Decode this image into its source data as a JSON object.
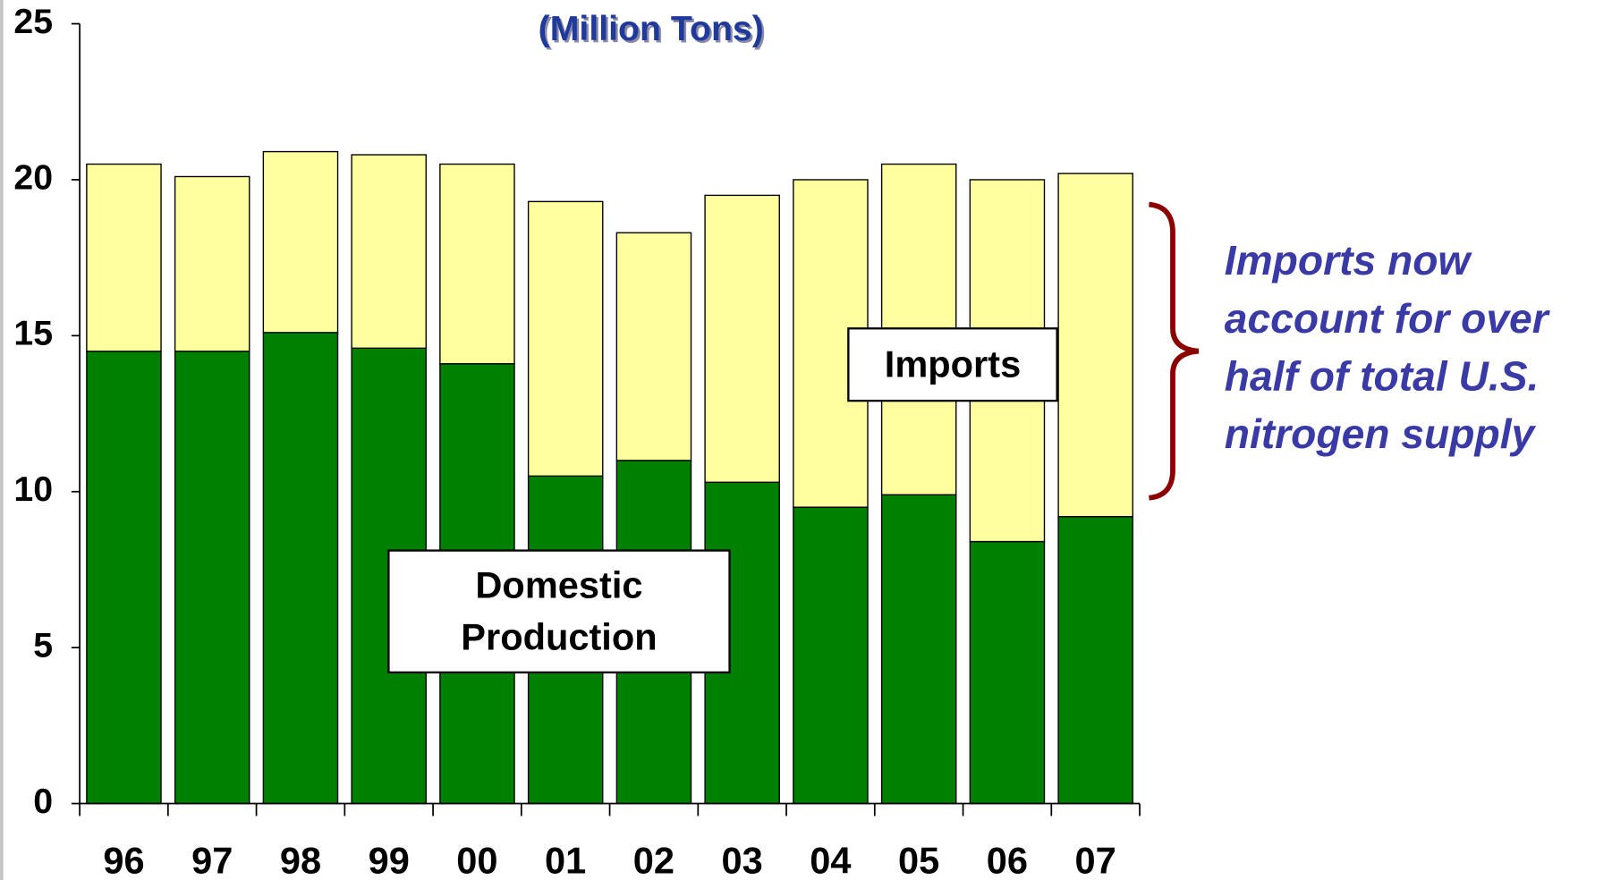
{
  "chart_data": {
    "type": "stacked_bar",
    "title": "(Million Tons)",
    "categories": [
      "96",
      "97",
      "98",
      "99",
      "00",
      "01",
      "02",
      "03",
      "04",
      "05",
      "06",
      "07"
    ],
    "series": [
      {
        "name": "Domestic Production",
        "color": "#008000",
        "values": [
          14.5,
          14.5,
          15.1,
          14.6,
          14.1,
          10.5,
          11.0,
          10.3,
          9.5,
          9.9,
          8.4,
          9.2
        ]
      },
      {
        "name": "Imports",
        "color": "#ffffa0",
        "values": [
          6.0,
          5.6,
          5.8,
          6.2,
          6.4,
          8.8,
          7.3,
          9.2,
          10.5,
          10.6,
          11.6,
          11.0
        ]
      }
    ],
    "ylim": [
      0,
      25
    ],
    "yticks": [
      0,
      5,
      10,
      15,
      20,
      25
    ],
    "annotation": "Imports now account for over half of total U.S. nitrogen supply"
  }
}
